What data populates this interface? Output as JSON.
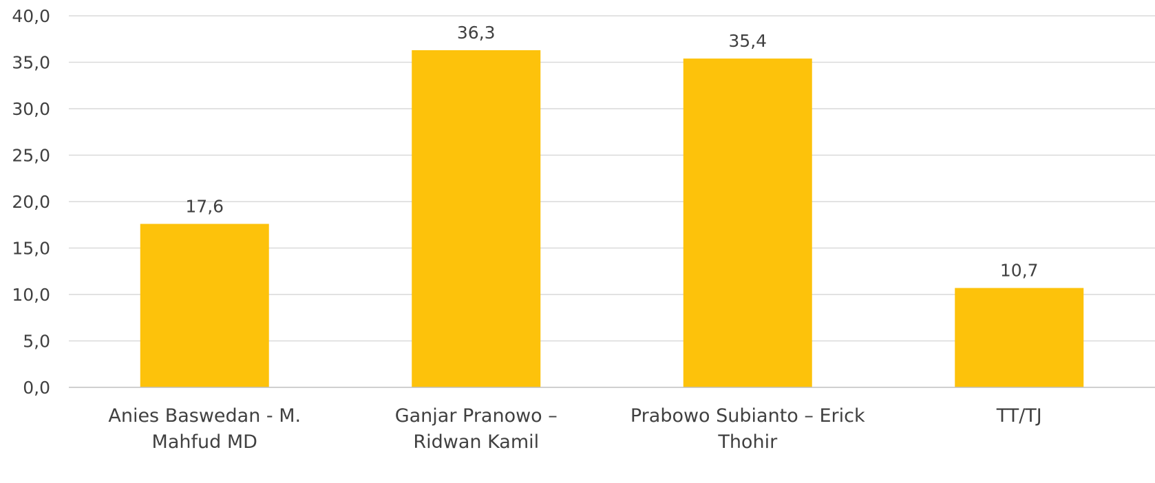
{
  "chart_data": {
    "type": "bar",
    "title": "",
    "xlabel": "",
    "ylabel": "",
    "categories": [
      [
        "Anies Baswedan - M.",
        "Mahfud MD"
      ],
      [
        "Ganjar Pranowo –",
        "Ridwan Kamil"
      ],
      [
        "Prabowo Subianto – Erick",
        "Thohir"
      ],
      [
        "TT/TJ"
      ]
    ],
    "values": [
      17.6,
      36.3,
      35.4,
      10.7
    ],
    "value_labels": [
      "17,6",
      "36,3",
      "35,4",
      "10,7"
    ],
    "ylim": [
      0,
      40
    ],
    "yticks": [
      0,
      5,
      10,
      15,
      20,
      25,
      30,
      35,
      40
    ],
    "ytick_labels": [
      "0,0",
      "5,0",
      "10,0",
      "15,0",
      "20,0",
      "25,0",
      "30,0",
      "35,0",
      "40,0"
    ],
    "grid": true,
    "legend": "none",
    "colors": {
      "bar": "#FDC20B",
      "grid": "#D9D9D9",
      "axis": "#BFBFBF",
      "text": "#404040"
    }
  }
}
